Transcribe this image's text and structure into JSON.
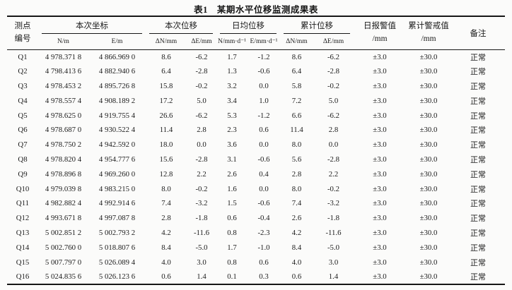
{
  "title": "表1　某期水平位移监测成果表",
  "table": {
    "header": {
      "point_id": "测点\n编号",
      "groups": [
        {
          "label": "本次坐标",
          "subs": [
            "N/m",
            "E/m"
          ]
        },
        {
          "label": "本次位移",
          "subs": [
            "ΔN/mm",
            "ΔE/mm"
          ]
        },
        {
          "label": "日均位移",
          "subs": [
            "N/mm·d⁻¹",
            "E/mm·d⁻¹"
          ]
        },
        {
          "label": "累计位移",
          "subs": [
            "ΔN/mm",
            "ΔE/mm"
          ]
        }
      ],
      "daily_alarm": "日报警值\n/mm",
      "cum_alarm": "累计警戒值\n/mm",
      "remark": "备注"
    },
    "rows": [
      {
        "id": "Q1",
        "n": "4 978.371 8",
        "e": "4 866.969 0",
        "dn": "8.6",
        "de": "-6.2",
        "daily_n": "1.7",
        "daily_e": "-1.2",
        "cum_dn": "8.6",
        "cum_de": "-6.2",
        "daily_limit": "±3.0",
        "cum_limit": "±30.0",
        "remark": "正常"
      },
      {
        "id": "Q2",
        "n": "4 798.413 6",
        "e": "4 882.940 6",
        "dn": "6.4",
        "de": "-2.8",
        "daily_n": "1.3",
        "daily_e": "-0.6",
        "cum_dn": "6.4",
        "cum_de": "-2.8",
        "daily_limit": "±3.0",
        "cum_limit": "±30.0",
        "remark": "正常"
      },
      {
        "id": "Q3",
        "n": "4 978.453 2",
        "e": "4 895.726 8",
        "dn": "15.8",
        "de": "-0.2",
        "daily_n": "3.2",
        "daily_e": "0.0",
        "cum_dn": "5.8",
        "cum_de": "-0.2",
        "daily_limit": "±3.0",
        "cum_limit": "±30.0",
        "remark": "正常"
      },
      {
        "id": "Q4",
        "n": "4 978.557 4",
        "e": "4 908.189 2",
        "dn": "17.2",
        "de": "5.0",
        "daily_n": "3.4",
        "daily_e": "1.0",
        "cum_dn": "7.2",
        "cum_de": "5.0",
        "daily_limit": "±3.0",
        "cum_limit": "±30.0",
        "remark": "正常"
      },
      {
        "id": "Q5",
        "n": "4 978.625 0",
        "e": "4 919.755 4",
        "dn": "26.6",
        "de": "-6.2",
        "daily_n": "5.3",
        "daily_e": "-1.2",
        "cum_dn": "6.6",
        "cum_de": "-6.2",
        "daily_limit": "±3.0",
        "cum_limit": "±30.0",
        "remark": "正常"
      },
      {
        "id": "Q6",
        "n": "4 978.687 0",
        "e": "4 930.522 4",
        "dn": "11.4",
        "de": "2.8",
        "daily_n": "2.3",
        "daily_e": "0.6",
        "cum_dn": "11.4",
        "cum_de": "2.8",
        "daily_limit": "±3.0",
        "cum_limit": "±30.0",
        "remark": "正常"
      },
      {
        "id": "Q7",
        "n": "4 978.750 2",
        "e": "4 942.592 0",
        "dn": "18.0",
        "de": "0.0",
        "daily_n": "3.6",
        "daily_e": "0.0",
        "cum_dn": "8.0",
        "cum_de": "0.0",
        "daily_limit": "±3.0",
        "cum_limit": "±30.0",
        "remark": "正常"
      },
      {
        "id": "Q8",
        "n": "4 978.820 4",
        "e": "4 954.777 6",
        "dn": "15.6",
        "de": "-2.8",
        "daily_n": "3.1",
        "daily_e": "-0.6",
        "cum_dn": "5.6",
        "cum_de": "-2.8",
        "daily_limit": "±3.0",
        "cum_limit": "±30.0",
        "remark": "正常"
      },
      {
        "id": "Q9",
        "n": "4 978.896 8",
        "e": "4 969.260 0",
        "dn": "12.8",
        "de": "2.2",
        "daily_n": "2.6",
        "daily_e": "0.4",
        "cum_dn": "2.8",
        "cum_de": "2.2",
        "daily_limit": "±3.0",
        "cum_limit": "±30.0",
        "remark": "正常"
      },
      {
        "id": "Q10",
        "n": "4 979.039 8",
        "e": "4 983.215 0",
        "dn": "8.0",
        "de": "-0.2",
        "daily_n": "1.6",
        "daily_e": "0.0",
        "cum_dn": "8.0",
        "cum_de": "-0.2",
        "daily_limit": "±3.0",
        "cum_limit": "±30.0",
        "remark": "正常"
      },
      {
        "id": "Q11",
        "n": "4 982.882 4",
        "e": "4 992.914 6",
        "dn": "7.4",
        "de": "-3.2",
        "daily_n": "1.5",
        "daily_e": "-0.6",
        "cum_dn": "7.4",
        "cum_de": "-3.2",
        "daily_limit": "±3.0",
        "cum_limit": "±30.0",
        "remark": "正常"
      },
      {
        "id": "Q12",
        "n": "4 993.671 8",
        "e": "4 997.087 8",
        "dn": "2.8",
        "de": "-1.8",
        "daily_n": "0.6",
        "daily_e": "-0.4",
        "cum_dn": "2.6",
        "cum_de": "-1.8",
        "daily_limit": "±3.0",
        "cum_limit": "±30.0",
        "remark": "正常"
      },
      {
        "id": "Q13",
        "n": "5 002.851 2",
        "e": "5 002.793 2",
        "dn": "4.2",
        "de": "-11.6",
        "daily_n": "0.8",
        "daily_e": "-2.3",
        "cum_dn": "4.2",
        "cum_de": "-11.6",
        "daily_limit": "±3.0",
        "cum_limit": "±30.0",
        "remark": "正常"
      },
      {
        "id": "Q14",
        "n": "5 002.760 0",
        "e": "5 018.807 6",
        "dn": "8.4",
        "de": "-5.0",
        "daily_n": "1.7",
        "daily_e": "-1.0",
        "cum_dn": "8.4",
        "cum_de": "-5.0",
        "daily_limit": "±3.0",
        "cum_limit": "±30.0",
        "remark": "正常"
      },
      {
        "id": "Q15",
        "n": "5 007.797 0",
        "e": "5 026.089 4",
        "dn": "4.0",
        "de": "3.0",
        "daily_n": "0.8",
        "daily_e": "0.6",
        "cum_dn": "4.0",
        "cum_de": "3.0",
        "daily_limit": "±3.0",
        "cum_limit": "±30.0",
        "remark": "正常"
      },
      {
        "id": "Q16",
        "n": "5 024.835 6",
        "e": "5 026.123 6",
        "dn": "0.6",
        "de": "1.4",
        "daily_n": "0.1",
        "daily_e": "0.3",
        "cum_dn": "0.6",
        "cum_de": "1.4",
        "daily_limit": "±3.0",
        "cum_limit": "±30.0",
        "remark": "正常"
      }
    ]
  }
}
